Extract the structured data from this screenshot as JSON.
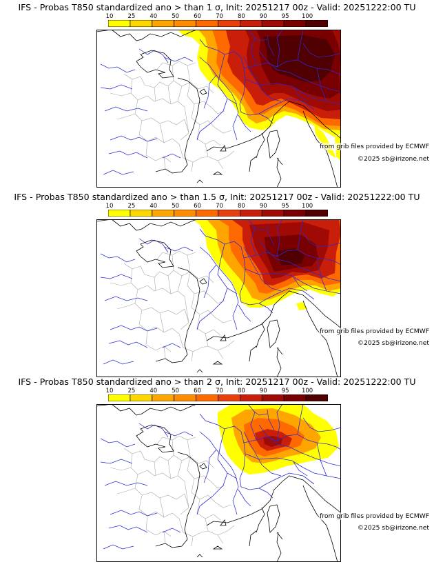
{
  "palette": [
    "#ffff00",
    "#ffd700",
    "#ffa500",
    "#ff8c00",
    "#ff6a00",
    "#e8400c",
    "#c81e0a",
    "#a00a05",
    "#780000",
    "#500000"
  ],
  "colorbar": {
    "ticks": [
      "10",
      "25",
      "40",
      "50",
      "60",
      "70",
      "80",
      "90",
      "95",
      "100"
    ]
  },
  "credits": {
    "source": "from grib files provided by ECMWF",
    "copyright": "©2025 sb@irizone.net"
  },
  "panels": [
    {
      "title": "IFS - Probas T850  standardized ano > than 1 σ, Init: 20251217 00z - Valid: 20251222:00 TU"
    },
    {
      "title": "IFS - Probas T850  standardized ano > than 1.5 σ, Init: 20251217 00z - Valid: 20251222:00 TU"
    },
    {
      "title": "IFS - Probas T850  standardized ano > than 2 σ, Init: 20251217 00z - Valid: 20251222:00 TU"
    }
  ]
}
